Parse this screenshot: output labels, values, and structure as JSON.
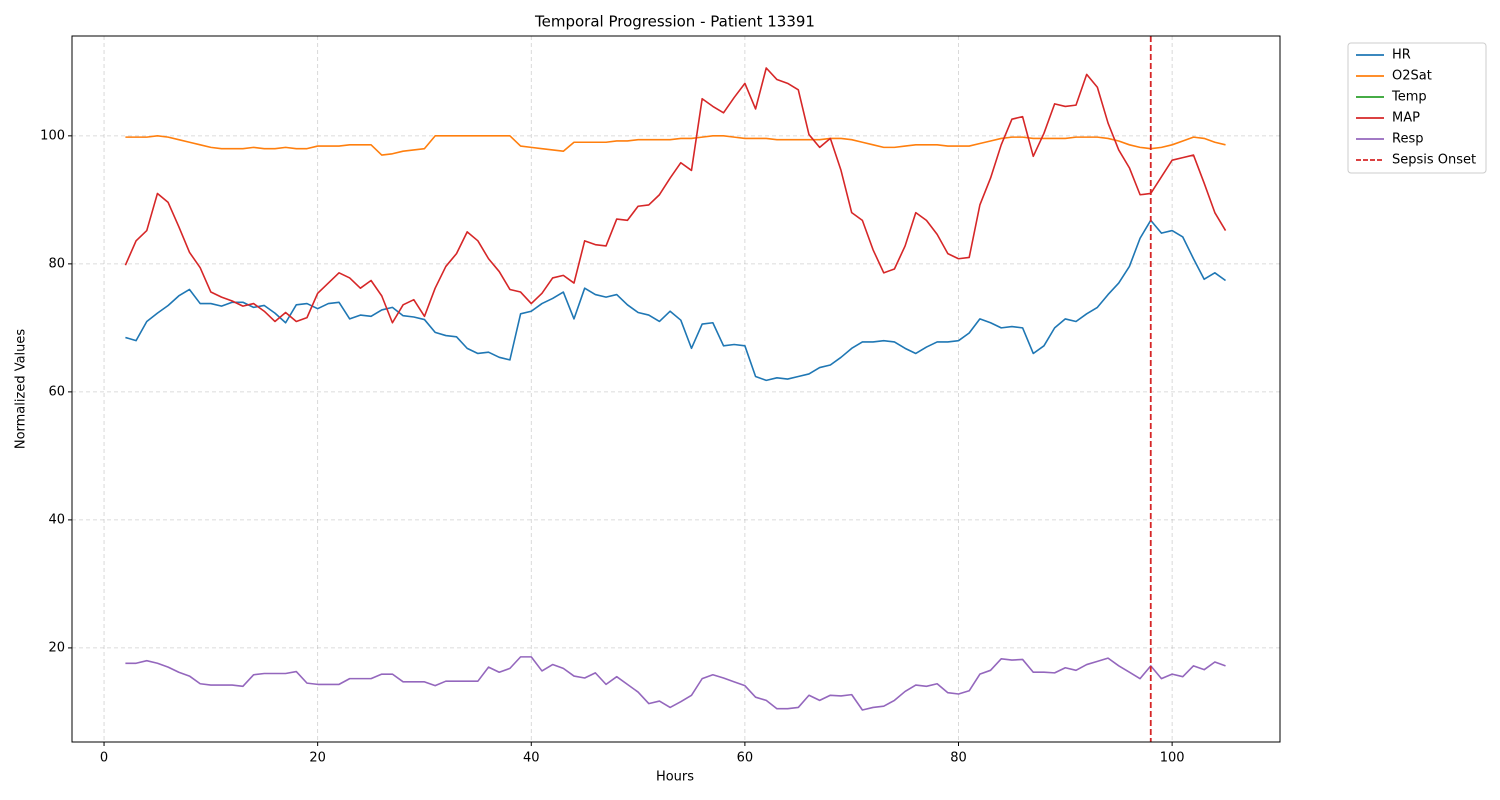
{
  "chart_data": {
    "type": "line",
    "title": "Temporal Progression - Patient 13391",
    "xlabel": "Hours",
    "ylabel": "Normalized Values",
    "x": [
      2,
      3,
      4,
      5,
      6,
      7,
      8,
      9,
      10,
      11,
      12,
      13,
      14,
      15,
      16,
      17,
      18,
      19,
      20,
      21,
      22,
      23,
      24,
      25,
      26,
      27,
      28,
      29,
      30,
      31,
      32,
      33,
      34,
      35,
      36,
      37,
      38,
      39,
      40,
      41,
      42,
      43,
      44,
      45,
      46,
      47,
      48,
      49,
      50,
      51,
      52,
      53,
      54,
      55,
      56,
      57,
      58,
      59,
      60,
      61,
      62,
      63,
      64,
      65,
      66,
      67,
      68,
      69,
      70,
      71,
      72,
      73,
      74,
      75,
      76,
      77,
      78,
      79,
      80,
      81,
      82,
      83,
      84,
      85,
      86,
      87,
      88,
      89,
      90,
      91,
      92,
      93,
      94,
      95,
      96,
      97,
      98,
      99,
      100,
      101,
      102,
      103,
      104,
      105
    ],
    "series": [
      {
        "name": "HR",
        "color": "#1f77b4",
        "values": [
          68.5,
          68,
          71,
          72.3,
          73.5,
          75,
          76,
          73.8,
          73.8,
          73.4,
          74,
          74,
          73.2,
          73.5,
          72.3,
          70.8,
          73.6,
          73.8,
          73,
          73.8,
          74,
          71.4,
          72,
          71.8,
          72.8,
          73.2,
          71.9,
          71.7,
          71.3,
          69.3,
          68.8,
          68.6,
          66.8,
          66,
          66.2,
          65.4,
          65,
          72.2,
          72.6,
          73.8,
          74.6,
          75.6,
          71.4,
          76.2,
          75.2,
          74.8,
          75.2,
          73.6,
          72.4,
          72,
          71,
          72.6,
          71.2,
          66.8,
          70.6,
          70.8,
          67.2,
          67.4,
          67.2,
          62.4,
          61.8,
          62.2,
          62,
          62.4,
          62.8,
          63.8,
          64.2,
          65.4,
          66.8,
          67.8,
          67.8,
          68,
          67.8,
          66.8,
          66,
          67,
          67.8,
          67.8,
          68,
          69.2,
          71.4,
          70.8,
          70,
          70.2,
          70,
          66,
          67.2,
          70,
          71.4,
          71,
          72.2,
          73.2,
          75.2,
          77,
          79.6,
          84,
          86.8,
          84.8,
          85.2,
          84.2,
          80.8,
          77.6,
          78.6,
          77.4
        ]
      },
      {
        "name": "O2Sat",
        "color": "#ff7f0e",
        "values": [
          99.8,
          99.8,
          99.8,
          100,
          99.8,
          99.4,
          99,
          98.6,
          98.2,
          98,
          98,
          98,
          98.2,
          98,
          98,
          98.2,
          98,
          98,
          98.4,
          98.4,
          98.4,
          98.6,
          98.6,
          98.6,
          97,
          97.2,
          97.6,
          97.8,
          98,
          100,
          100,
          100,
          100,
          100,
          100,
          100,
          100,
          98.4,
          98.2,
          98,
          97.8,
          97.6,
          99,
          99,
          99,
          99,
          99.2,
          99.2,
          99.4,
          99.4,
          99.4,
          99.4,
          99.6,
          99.6,
          99.8,
          100,
          100,
          99.8,
          99.6,
          99.6,
          99.6,
          99.4,
          99.4,
          99.4,
          99.4,
          99.4,
          99.6,
          99.6,
          99.4,
          99,
          98.6,
          98.2,
          98.2,
          98.4,
          98.6,
          98.6,
          98.6,
          98.4,
          98.4,
          98.4,
          98.8,
          99.2,
          99.6,
          99.8,
          99.8,
          99.6,
          99.6,
          99.6,
          99.6,
          99.8,
          99.8,
          99.8,
          99.6,
          99.2,
          98.6,
          98.2,
          98,
          98.2,
          98.6,
          99.2,
          99.8,
          99.6,
          99,
          98.6
        ]
      },
      {
        "name": "Temp",
        "color": "#2ca02c",
        "values": [
          null,
          null,
          null,
          null,
          null,
          null,
          null,
          null,
          null,
          null,
          null,
          null,
          null,
          null,
          null,
          null,
          null,
          null,
          null,
          null,
          null,
          null,
          null,
          null,
          null,
          null,
          null,
          null,
          null,
          null,
          null,
          null,
          null,
          null,
          null,
          null,
          null,
          null,
          null,
          null,
          null,
          null,
          null,
          null,
          null,
          null,
          null,
          null,
          null,
          null,
          null,
          null,
          null,
          null,
          null,
          null,
          null,
          null,
          null,
          null,
          null,
          null,
          null,
          null,
          null,
          null,
          null,
          null,
          null,
          null,
          null,
          null,
          null,
          null,
          null,
          null,
          null,
          null,
          null,
          null,
          null,
          null,
          null,
          null,
          null,
          null,
          null,
          null,
          null,
          null,
          null,
          null,
          null,
          null,
          null,
          null,
          null,
          null,
          null,
          null,
          null,
          null,
          null,
          null
        ]
      },
      {
        "name": "MAP",
        "color": "#d62728",
        "values": [
          79.8,
          83.6,
          85.2,
          91,
          89.6,
          85.8,
          81.8,
          79.4,
          75.6,
          74.8,
          74.2,
          73.4,
          73.8,
          72.6,
          71,
          72.4,
          71,
          71.6,
          75.4,
          77,
          78.6,
          77.8,
          76.2,
          77.4,
          75,
          70.8,
          73.6,
          74.4,
          71.8,
          76.2,
          79.6,
          81.6,
          85,
          83.6,
          80.8,
          78.8,
          76,
          75.6,
          73.8,
          75.4,
          77.8,
          78.2,
          77,
          83.6,
          83,
          82.8,
          87,
          86.8,
          89,
          89.2,
          90.8,
          93.4,
          95.8,
          94.6,
          105.8,
          104.6,
          103.6,
          106,
          108.2,
          104.2,
          110.6,
          108.8,
          108.2,
          107.2,
          100.2,
          98.2,
          99.6,
          94.6,
          88,
          86.8,
          82.2,
          78.6,
          79.2,
          82.8,
          88,
          86.8,
          84.6,
          81.6,
          80.8,
          81,
          89.2,
          93.4,
          98.6,
          102.6,
          103,
          96.8,
          100.4,
          105,
          104.6,
          104.8,
          109.6,
          107.6,
          102,
          97.8,
          95,
          90.8,
          91,
          93.6,
          96.2,
          96.6,
          97,
          92.6,
          88,
          85.2
        ]
      },
      {
        "name": "Resp",
        "color": "#9467bd",
        "values": [
          17.6,
          17.6,
          18,
          17.6,
          17,
          16.2,
          15.6,
          14.4,
          14.2,
          14.2,
          14.2,
          14,
          15.8,
          16,
          16,
          16,
          16.3,
          14.5,
          14.3,
          14.3,
          14.3,
          15.2,
          15.2,
          15.2,
          15.9,
          15.9,
          14.7,
          14.7,
          14.7,
          14.1,
          14.8,
          14.8,
          14.8,
          14.8,
          17,
          16.2,
          16.8,
          18.6,
          18.6,
          16.4,
          17.4,
          16.8,
          15.6,
          15.3,
          16.1,
          14.3,
          15.5,
          14.3,
          13.1,
          11.3,
          11.7,
          10.7,
          11.6,
          12.6,
          15.2,
          15.8,
          15.3,
          14.7,
          14.1,
          12.3,
          11.8,
          10.5,
          10.5,
          10.7,
          12.6,
          11.8,
          12.6,
          12.5,
          12.7,
          10.3,
          10.7,
          10.9,
          11.8,
          13.2,
          14.2,
          14,
          14.4,
          13,
          12.8,
          13.3,
          15.9,
          16.5,
          18.3,
          18.1,
          18.2,
          16.2,
          16.2,
          16.1,
          16.9,
          16.5,
          17.4,
          17.9,
          18.4,
          17.2,
          16.2,
          15.2,
          17.2,
          15.2,
          15.9,
          15.5,
          17.2,
          16.6,
          17.8,
          17.2
        ]
      }
    ],
    "vlines": [
      {
        "name": "Sepsis Onset",
        "x": 98,
        "color": "#d62728"
      }
    ],
    "xlim": [
      -3.0,
      110.1
    ],
    "xticks": [
      0,
      20,
      40,
      60,
      80,
      100
    ],
    "ylim": [
      5.3,
      115.6
    ],
    "yticks": [
      20,
      40,
      60,
      80,
      100
    ],
    "grid": true,
    "legend": "outside upper right"
  }
}
